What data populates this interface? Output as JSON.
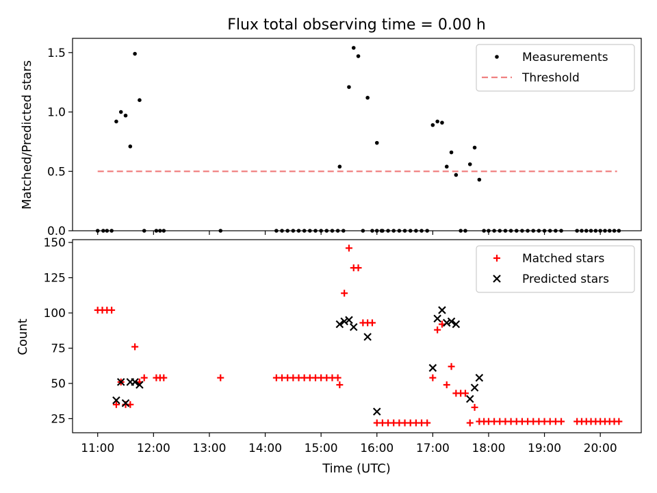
{
  "title": "Flux total observing time = 0.00 h",
  "colors": {
    "measurement": "#000000",
    "threshold": "#f08080",
    "matched": "#ff0000",
    "predicted": "#000000"
  },
  "x_ticks": [
    "11:00",
    "12:00",
    "13:00",
    "14:00",
    "15:00",
    "16:00",
    "17:00",
    "18:00",
    "19:00",
    "20:00"
  ],
  "xlabel": "Time (UTC)",
  "chart_data": [
    {
      "type": "scatter",
      "title": "Flux total observing time = 0.00 h",
      "ylabel": "Matched/Predicted stars",
      "xlim": [
        "10:33",
        "20:44"
      ],
      "ylim": [
        0,
        1.62
      ],
      "y_ticks": [
        0.0,
        0.5,
        1.0,
        1.5
      ],
      "y_tick_labels": [
        "0.0",
        "0.5",
        "1.0",
        "1.5"
      ],
      "legend_position": "top-right",
      "legend": [
        "Measurements",
        "Threshold"
      ],
      "series": [
        {
          "name": "Measurements",
          "marker": "dot",
          "points": [
            [
              "11:00",
              0
            ],
            [
              "11:06",
              0
            ],
            [
              "11:10",
              0
            ],
            [
              "11:15",
              0
            ],
            [
              "11:20",
              0.92
            ],
            [
              "11:25",
              1.0
            ],
            [
              "11:30",
              0.97
            ],
            [
              "11:35",
              0.71
            ],
            [
              "11:40",
              1.49
            ],
            [
              "11:45",
              1.1
            ],
            [
              "11:50",
              0
            ],
            [
              "12:03",
              0
            ],
            [
              "12:07",
              0
            ],
            [
              "12:11",
              0
            ],
            [
              "13:12",
              0
            ],
            [
              "14:12",
              0
            ],
            [
              "14:18",
              0
            ],
            [
              "14:24",
              0
            ],
            [
              "14:30",
              0
            ],
            [
              "14:36",
              0
            ],
            [
              "14:42",
              0
            ],
            [
              "14:48",
              0
            ],
            [
              "14:54",
              0
            ],
            [
              "15:00",
              0
            ],
            [
              "15:06",
              0
            ],
            [
              "15:12",
              0
            ],
            [
              "15:18",
              0
            ],
            [
              "15:24",
              0
            ],
            [
              "15:30",
              1.21
            ],
            [
              "15:35",
              1.54
            ],
            [
              "15:40",
              1.47
            ],
            [
              "15:45",
              0
            ],
            [
              "15:50",
              1.12
            ],
            [
              "15:55",
              0
            ],
            [
              "16:00",
              0
            ],
            [
              "16:05",
              0
            ],
            [
              "15:20",
              0.54
            ],
            [
              "16:00",
              0.74
            ],
            [
              "16:06",
              0
            ],
            [
              "16:12",
              0
            ],
            [
              "16:18",
              0
            ],
            [
              "16:24",
              0
            ],
            [
              "16:30",
              0
            ],
            [
              "16:36",
              0
            ],
            [
              "16:42",
              0
            ],
            [
              "16:48",
              0
            ],
            [
              "16:54",
              0
            ],
            [
              "17:00",
              0.89
            ],
            [
              "17:05",
              0.92
            ],
            [
              "17:10",
              0.91
            ],
            [
              "17:15",
              0.54
            ],
            [
              "17:20",
              0.66
            ],
            [
              "17:25",
              0.47
            ],
            [
              "17:30",
              0
            ],
            [
              "17:35",
              0
            ],
            [
              "17:40",
              0.56
            ],
            [
              "17:45",
              0.7
            ],
            [
              "17:50",
              0.43
            ],
            [
              "17:55",
              0
            ],
            [
              "18:00",
              0
            ],
            [
              "18:06",
              0
            ],
            [
              "18:12",
              0
            ],
            [
              "18:18",
              0
            ],
            [
              "18:24",
              0
            ],
            [
              "18:30",
              0
            ],
            [
              "18:36",
              0
            ],
            [
              "18:42",
              0
            ],
            [
              "18:48",
              0
            ],
            [
              "18:54",
              0
            ],
            [
              "19:00",
              0
            ],
            [
              "19:06",
              0
            ],
            [
              "19:12",
              0
            ],
            [
              "19:18",
              0
            ],
            [
              "19:35",
              0
            ],
            [
              "19:40",
              0
            ],
            [
              "19:45",
              0
            ],
            [
              "19:50",
              0
            ],
            [
              "19:55",
              0
            ],
            [
              "20:00",
              0
            ],
            [
              "20:05",
              0
            ],
            [
              "20:10",
              0
            ],
            [
              "20:15",
              0
            ],
            [
              "20:20",
              0
            ]
          ]
        },
        {
          "name": "Threshold",
          "type": "line",
          "style": "dashed",
          "points": [
            [
              "11:00",
              0.5
            ],
            [
              "20:18",
              0.5
            ]
          ]
        }
      ]
    },
    {
      "type": "scatter",
      "xlabel": "Time (UTC)",
      "ylabel": "Count",
      "xlim": [
        "10:33",
        "20:44"
      ],
      "ylim": [
        15,
        152
      ],
      "y_ticks": [
        25,
        50,
        75,
        100,
        125,
        150
      ],
      "y_tick_labels": [
        "25",
        "50",
        "75",
        "100",
        "125",
        "150"
      ],
      "legend_position": "top-right",
      "legend": [
        "Matched stars",
        "Predicted stars"
      ],
      "series": [
        {
          "name": "Matched stars",
          "marker": "plus",
          "points": [
            [
              "11:00",
              102
            ],
            [
              "11:05",
              102
            ],
            [
              "11:10",
              102
            ],
            [
              "11:15",
              102
            ],
            [
              "11:20",
              35
            ],
            [
              "11:25",
              51
            ],
            [
              "11:30",
              35
            ],
            [
              "11:35",
              35
            ],
            [
              "11:40",
              76
            ],
            [
              "11:45",
              51
            ],
            [
              "11:50",
              54
            ],
            [
              "12:03",
              54
            ],
            [
              "12:07",
              54
            ],
            [
              "12:11",
              54
            ],
            [
              "13:12",
              54
            ],
            [
              "14:12",
              54
            ],
            [
              "14:18",
              54
            ],
            [
              "14:24",
              54
            ],
            [
              "14:30",
              54
            ],
            [
              "14:36",
              54
            ],
            [
              "14:42",
              54
            ],
            [
              "14:48",
              54
            ],
            [
              "14:54",
              54
            ],
            [
              "15:00",
              54
            ],
            [
              "15:06",
              54
            ],
            [
              "15:12",
              54
            ],
            [
              "15:18",
              54
            ],
            [
              "15:20",
              49
            ],
            [
              "15:25",
              114
            ],
            [
              "15:30",
              146
            ],
            [
              "15:35",
              132
            ],
            [
              "15:40",
              132
            ],
            [
              "15:45",
              93
            ],
            [
              "15:50",
              93
            ],
            [
              "15:55",
              93
            ],
            [
              "16:00",
              22
            ],
            [
              "16:06",
              22
            ],
            [
              "16:12",
              22
            ],
            [
              "16:18",
              22
            ],
            [
              "16:24",
              22
            ],
            [
              "16:30",
              22
            ],
            [
              "16:36",
              22
            ],
            [
              "16:42",
              22
            ],
            [
              "16:48",
              22
            ],
            [
              "16:54",
              22
            ],
            [
              "17:00",
              54
            ],
            [
              "17:05",
              88
            ],
            [
              "17:10",
              92
            ],
            [
              "17:15",
              49
            ],
            [
              "17:20",
              62
            ],
            [
              "17:25",
              43
            ],
            [
              "17:30",
              43
            ],
            [
              "17:35",
              43
            ],
            [
              "17:40",
              22
            ],
            [
              "17:45",
              33
            ],
            [
              "17:50",
              23
            ],
            [
              "17:55",
              23
            ],
            [
              "18:00",
              23
            ],
            [
              "18:06",
              23
            ],
            [
              "18:12",
              23
            ],
            [
              "18:18",
              23
            ],
            [
              "18:24",
              23
            ],
            [
              "18:30",
              23
            ],
            [
              "18:36",
              23
            ],
            [
              "18:42",
              23
            ],
            [
              "18:48",
              23
            ],
            [
              "18:54",
              23
            ],
            [
              "19:00",
              23
            ],
            [
              "19:06",
              23
            ],
            [
              "19:12",
              23
            ],
            [
              "19:18",
              23
            ],
            [
              "19:35",
              23
            ],
            [
              "19:40",
              23
            ],
            [
              "19:45",
              23
            ],
            [
              "19:50",
              23
            ],
            [
              "19:55",
              23
            ],
            [
              "20:00",
              23
            ],
            [
              "20:05",
              23
            ],
            [
              "20:10",
              23
            ],
            [
              "20:15",
              23
            ],
            [
              "20:20",
              23
            ]
          ]
        },
        {
          "name": "Predicted stars",
          "marker": "x",
          "points": [
            [
              "11:20",
              38
            ],
            [
              "11:25",
              51
            ],
            [
              "11:30",
              36
            ],
            [
              "11:35",
              51
            ],
            [
              "11:40",
              51
            ],
            [
              "11:45",
              49
            ],
            [
              "15:20",
              92
            ],
            [
              "15:25",
              94
            ],
            [
              "15:30",
              95
            ],
            [
              "15:35",
              90
            ],
            [
              "15:50",
              83
            ],
            [
              "16:00",
              30
            ],
            [
              "17:00",
              61
            ],
            [
              "17:05",
              96
            ],
            [
              "17:10",
              102
            ],
            [
              "17:15",
              93
            ],
            [
              "17:20",
              94
            ],
            [
              "17:25",
              92
            ],
            [
              "17:40",
              39
            ],
            [
              "17:45",
              47
            ],
            [
              "17:50",
              54
            ]
          ]
        }
      ]
    }
  ]
}
